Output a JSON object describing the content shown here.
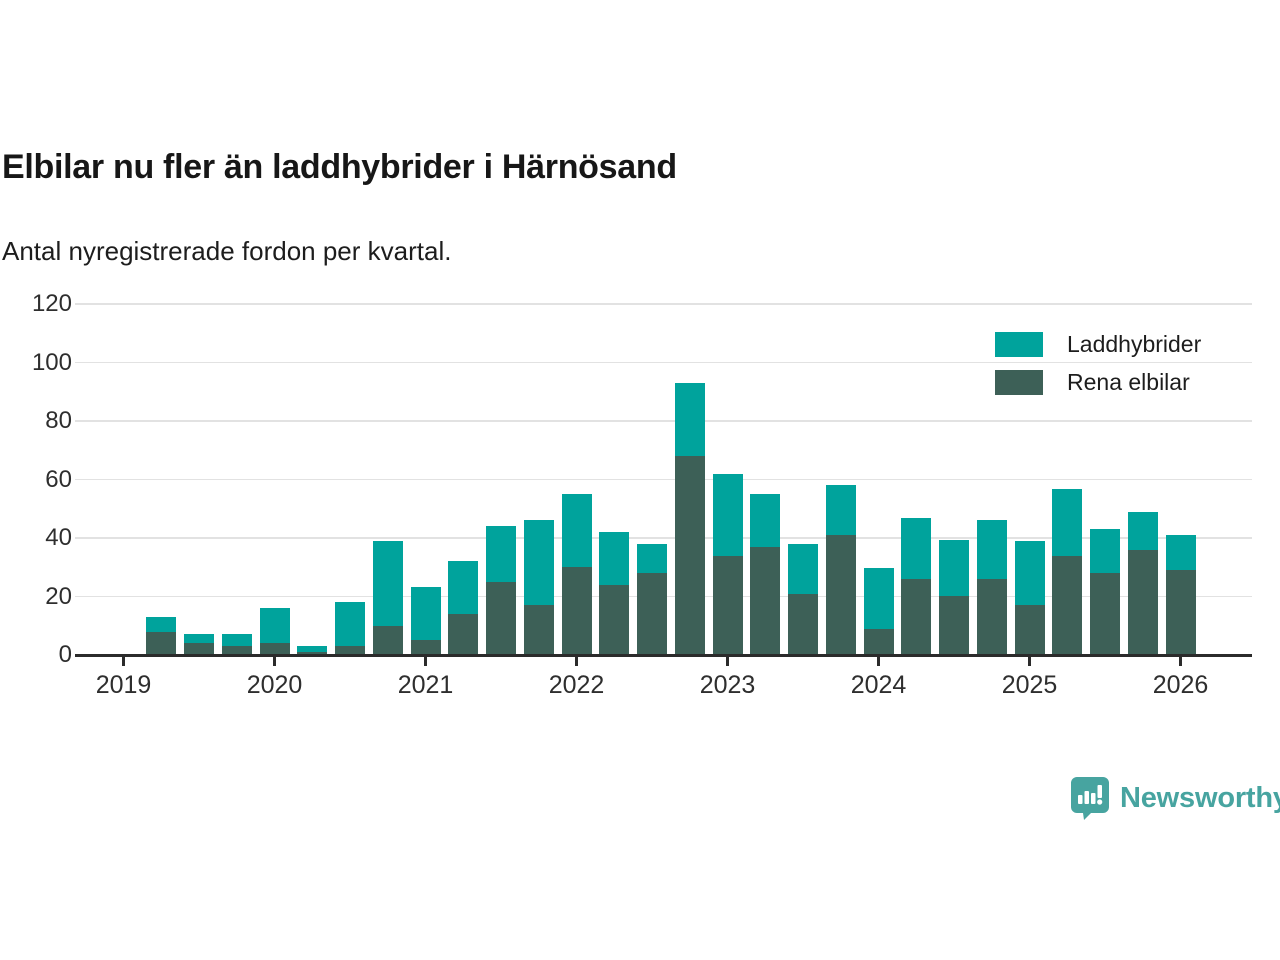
{
  "header": {
    "title": "Elbilar nu fler än laddhybrider i Härnösand",
    "subtitle": "Antal nyregistrerade fordon per kvartal."
  },
  "chart_data": {
    "type": "bar",
    "stacked": true,
    "title": "Elbilar nu fler än laddhybrider i Härnösand",
    "subtitle": "Antal nyregistrerade fordon per kvartal.",
    "xlabel": "",
    "ylabel": "",
    "ylim": [
      0,
      120
    ],
    "yticks": [
      0,
      20,
      40,
      60,
      80,
      100,
      120
    ],
    "xticks": [
      "2019",
      "2020",
      "2021",
      "2022",
      "2023",
      "2024",
      "2025",
      "2026"
    ],
    "grid": "horizontal",
    "legend_position": "top-right",
    "categories": [
      "2019 Q1",
      "2019 Q2",
      "2019 Q3",
      "2019 Q4",
      "2020 Q1",
      "2020 Q2",
      "2020 Q3",
      "2020 Q4",
      "2021 Q1",
      "2021 Q2",
      "2021 Q3",
      "2021 Q4",
      "2022 Q1",
      "2022 Q2",
      "2022 Q3",
      "2022 Q4",
      "2023 Q1",
      "2023 Q2",
      "2023 Q3",
      "2023 Q4",
      "2024 Q1",
      "2024 Q2",
      "2024 Q3",
      "2024 Q4",
      "2025 Q1",
      "2025 Q2",
      "2025 Q3",
      "2025 Q4",
      "2026 Q1"
    ],
    "series": [
      {
        "name": "Laddhybrider",
        "color": "#00a39c",
        "values": [
          0,
          5,
          3,
          4,
          12,
          2,
          15,
          29,
          18,
          18,
          19,
          29,
          25,
          18,
          10,
          25,
          28,
          18,
          17,
          17,
          21,
          21,
          19,
          20,
          22,
          23,
          15,
          13,
          12
        ]
      },
      {
        "name": "Rena elbilar",
        "color": "#3d6057",
        "values": [
          0,
          8,
          4,
          3,
          4,
          1,
          3,
          10,
          5,
          14,
          25,
          17,
          30,
          24,
          28,
          68,
          34,
          37,
          21,
          41,
          9,
          26,
          20,
          26,
          17,
          34,
          28,
          36,
          29
        ]
      }
    ],
    "totals": [
      0,
      13,
      7,
      7,
      16,
      3,
      18,
      39,
      23,
      32,
      44,
      46,
      55,
      42,
      38,
      93,
      62,
      55,
      38,
      58,
      30,
      47,
      39,
      46,
      39,
      57,
      43,
      49,
      41
    ]
  },
  "legend": {
    "items": [
      {
        "label": "Laddhybrider",
        "color": "#00a39c"
      },
      {
        "label": "Rena elbilar",
        "color": "#3d6057"
      }
    ]
  },
  "footer": {
    "brand": "Newsworthy",
    "brand_color": "#47a4a0"
  }
}
